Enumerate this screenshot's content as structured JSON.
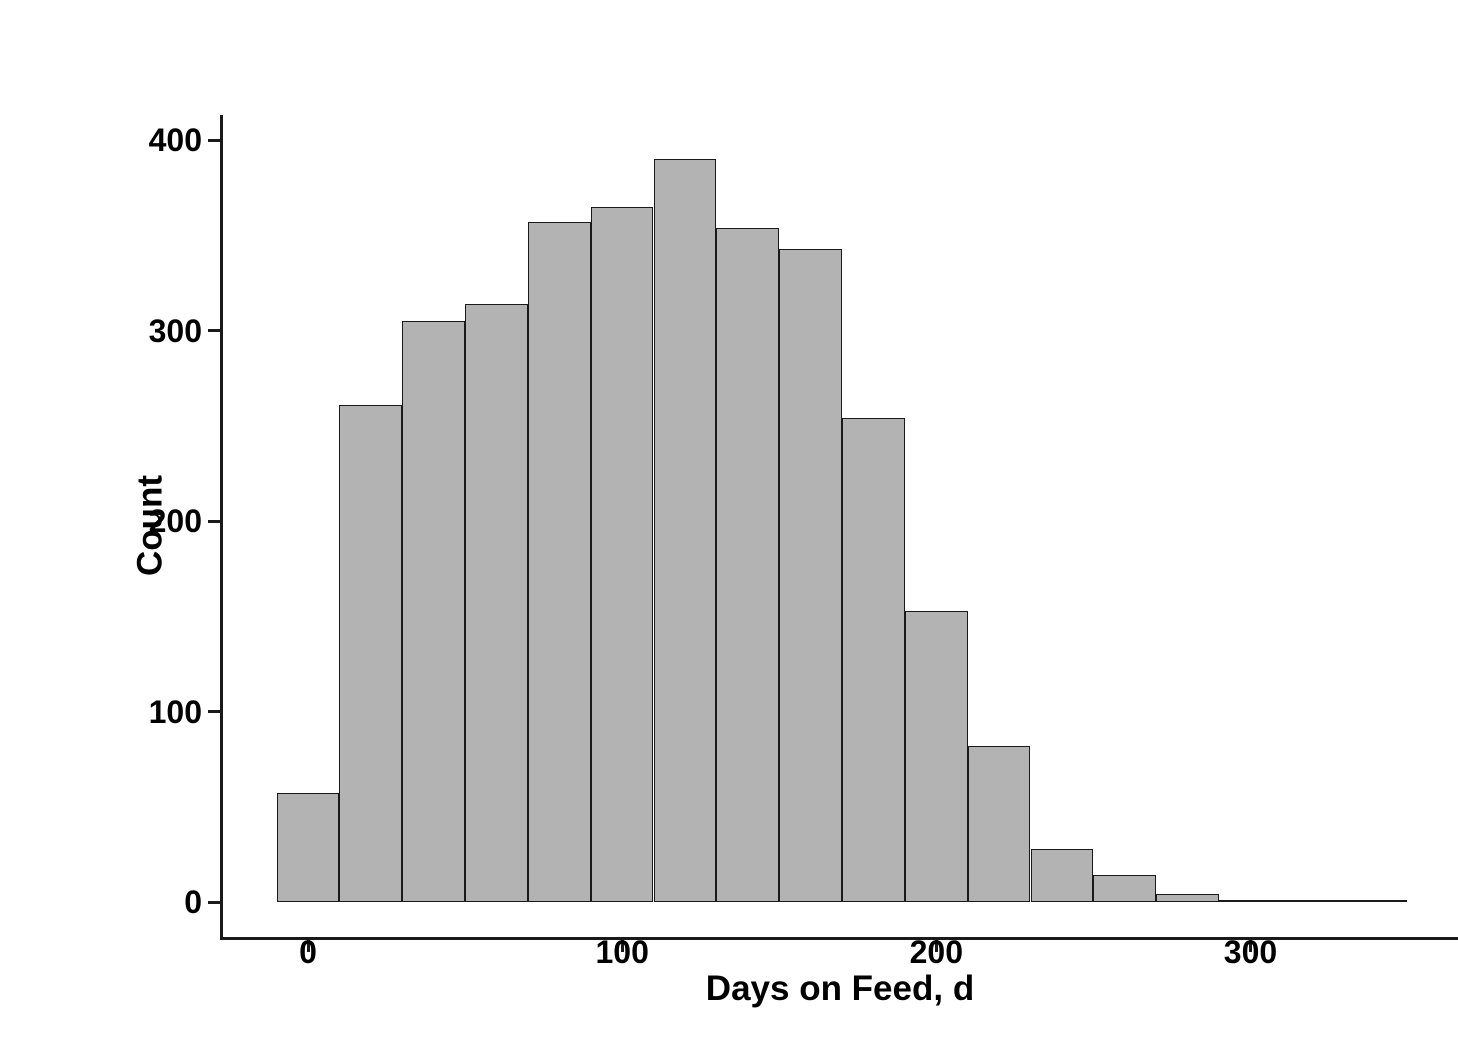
{
  "chart_data": {
    "type": "bar",
    "subtype": "histogram",
    "title": "",
    "xlabel": "Days on Feed, d",
    "ylabel": "Count",
    "bin_width": 20,
    "bin_centers": [
      0,
      20,
      40,
      60,
      80,
      100,
      120,
      140,
      160,
      180,
      200,
      220,
      240,
      260,
      280,
      300,
      320,
      340
    ],
    "counts": [
      57,
      261,
      305,
      314,
      357,
      365,
      390,
      354,
      343,
      254,
      153,
      82,
      28,
      14,
      4,
      1,
      1,
      1
    ],
    "x_ticks": [
      0,
      100,
      200,
      300
    ],
    "x_tick_labels": [
      "0",
      "100",
      "200",
      "300"
    ],
    "y_ticks": [
      0,
      100,
      200,
      300,
      400
    ],
    "y_tick_labels": [
      "0",
      "100",
      "200",
      "300",
      "400"
    ],
    "xlim": [
      -27,
      366
    ],
    "ylim": [
      0,
      414
    ],
    "grid": false,
    "legend": false,
    "bar_fill_color": "#b3b3b3",
    "bar_border_color": "#1a1a1a",
    "axis_color": "#1a1a1a",
    "text_color": "#000000",
    "background_color": "#ffffff"
  }
}
